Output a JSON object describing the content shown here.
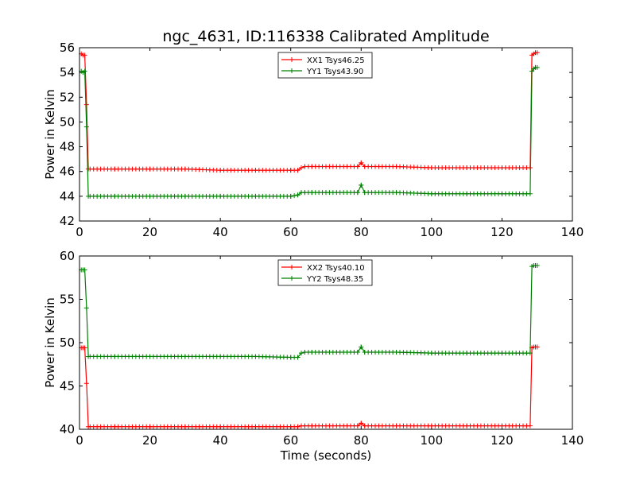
{
  "figure": {
    "title": "ngc_4631, ID:116338 Calibrated Amplitude"
  },
  "colors": {
    "xx": "#ff0000",
    "yy": "#008000",
    "axis": "#000000",
    "background": "#ffffff"
  },
  "chart_data": [
    {
      "type": "line",
      "title": "ngc_4631, ID:116338 Calibrated Amplitude",
      "xlabel": "",
      "ylabel": "Power in Kelvin",
      "xlim": [
        0,
        140
      ],
      "ylim": [
        42,
        56
      ],
      "xticks": [
        "0",
        "20",
        "40",
        "60",
        "80",
        "100",
        "120",
        "140"
      ],
      "yticks": [
        "42",
        "44",
        "46",
        "48",
        "50",
        "52",
        "54",
        "56"
      ],
      "grid": false,
      "legend": "top-center",
      "series": [
        {
          "name": "XX1 Tsys46.25",
          "color": "#ff0000",
          "marker": "+",
          "x": [
            0.5,
            1.0,
            1.5,
            2.0,
            2.5,
            10,
            20,
            30,
            40,
            50,
            60,
            62,
            63,
            64,
            66,
            70,
            79,
            80,
            81,
            90,
            100,
            110,
            120,
            127,
            128,
            128.5,
            129,
            129.5,
            130
          ],
          "y": [
            55.5,
            55.4,
            55.4,
            51.4,
            46.2,
            46.2,
            46.2,
            46.2,
            46.1,
            46.1,
            46.1,
            46.1,
            46.3,
            46.4,
            46.4,
            46.4,
            46.4,
            46.7,
            46.4,
            46.4,
            46.3,
            46.3,
            46.3,
            46.3,
            46.3,
            55.4,
            55.5,
            55.6,
            55.6
          ]
        },
        {
          "name": "YY1 Tsys43.90",
          "color": "#008000",
          "marker": "+",
          "x": [
            0.5,
            1.0,
            1.5,
            2.0,
            2.5,
            10,
            20,
            30,
            40,
            50,
            60,
            62,
            63,
            64,
            66,
            70,
            79,
            80,
            81,
            90,
            100,
            110,
            120,
            127,
            128,
            128.5,
            129,
            129.5,
            130
          ],
          "y": [
            54.1,
            54.0,
            54.1,
            49.6,
            44.0,
            44.0,
            44.0,
            44.0,
            44.0,
            44.0,
            44.0,
            44.1,
            44.3,
            44.3,
            44.3,
            44.3,
            44.3,
            44.9,
            44.3,
            44.3,
            44.2,
            44.2,
            44.2,
            44.2,
            44.2,
            54.1,
            54.3,
            54.4,
            54.4
          ]
        }
      ]
    },
    {
      "type": "line",
      "title": "",
      "xlabel": "Time (seconds)",
      "ylabel": "Power in Kelvin",
      "xlim": [
        0,
        140
      ],
      "ylim": [
        40,
        60
      ],
      "xticks": [
        "0",
        "20",
        "40",
        "60",
        "80",
        "100",
        "120",
        "140"
      ],
      "yticks": [
        "40",
        "45",
        "50",
        "55",
        "60"
      ],
      "grid": false,
      "legend": "top-center",
      "series": [
        {
          "name": "XX2 Tsys40.10",
          "color": "#ff0000",
          "marker": "+",
          "x": [
            0.5,
            1.0,
            1.5,
            2.0,
            2.5,
            10,
            20,
            30,
            40,
            50,
            60,
            62,
            63,
            64,
            66,
            70,
            79,
            80,
            81,
            90,
            100,
            110,
            120,
            127,
            128,
            128.5,
            129,
            129.5,
            130
          ],
          "y": [
            49.4,
            49.4,
            49.4,
            45.3,
            40.3,
            40.3,
            40.3,
            40.3,
            40.3,
            40.3,
            40.3,
            40.3,
            40.4,
            40.4,
            40.4,
            40.4,
            40.4,
            40.7,
            40.4,
            40.4,
            40.4,
            40.4,
            40.4,
            40.4,
            40.4,
            49.4,
            49.5,
            49.5,
            49.5
          ]
        },
        {
          "name": "YY2 Tsys48.35",
          "color": "#008000",
          "marker": "+",
          "x": [
            0.5,
            1.0,
            1.5,
            2.0,
            2.5,
            10,
            20,
            30,
            40,
            50,
            60,
            62,
            63,
            64,
            66,
            70,
            79,
            80,
            81,
            90,
            100,
            110,
            120,
            127,
            128,
            128.5,
            129,
            129.5,
            130
          ],
          "y": [
            58.4,
            58.4,
            58.4,
            54.0,
            48.4,
            48.4,
            48.4,
            48.4,
            48.4,
            48.4,
            48.3,
            48.3,
            48.8,
            48.9,
            48.9,
            48.9,
            48.9,
            49.5,
            48.9,
            48.9,
            48.8,
            48.8,
            48.8,
            48.8,
            48.8,
            58.8,
            58.9,
            58.9,
            58.9
          ]
        }
      ]
    }
  ]
}
